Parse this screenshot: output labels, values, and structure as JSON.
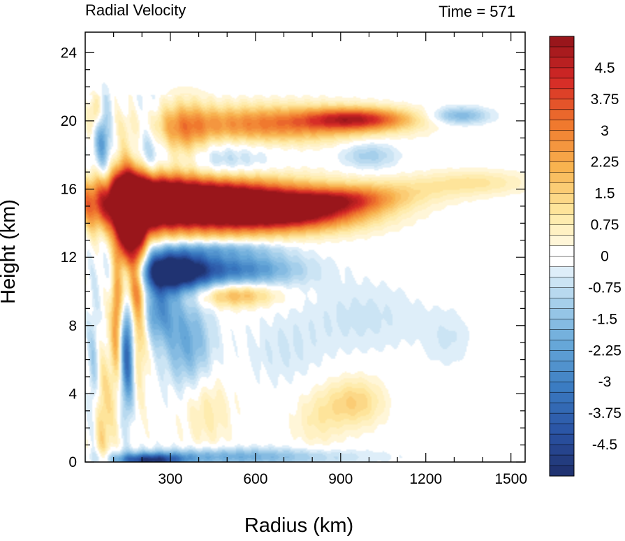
{
  "chart_data": {
    "type": "heatmap",
    "title_left": "Radial Velocity",
    "title_right": "Time = 571",
    "xlabel": "Radius (km)",
    "ylabel": "Height (km)",
    "xlim": [
      0,
      1550
    ],
    "ylim": [
      0,
      25.2
    ],
    "x_ticks": [
      300,
      600,
      900,
      1200,
      1500
    ],
    "y_ticks": [
      0,
      4,
      8,
      12,
      16,
      20,
      24
    ],
    "colorbar": {
      "min": -5.25,
      "max": 5.25,
      "step": 0.25,
      "labels": [
        "4.5",
        "3.75",
        "3",
        "2.25",
        "1.5",
        "0.75",
        "0",
        "-0.75",
        "-1.5",
        "-2.25",
        "-3",
        "-3.75",
        "-4.5"
      ],
      "label_values": [
        4.5,
        3.75,
        3,
        2.25,
        1.5,
        0.75,
        0,
        -0.75,
        -1.5,
        -2.25,
        -3,
        -3.75,
        -4.5
      ]
    },
    "features": [
      {
        "r": 370,
        "z": 15.2,
        "sr": 260,
        "sz": 1.1,
        "v": 8.0
      },
      {
        "r": 200,
        "z": 15.3,
        "sr": 80,
        "sz": 1.2,
        "v": 3.0
      },
      {
        "r": 720,
        "z": 14.7,
        "sr": 190,
        "sz": 0.75,
        "v": 4.5
      },
      {
        "r": 920,
        "z": 15.4,
        "sr": 120,
        "sz": 0.5,
        "v": 2.2
      },
      {
        "r": 1100,
        "z": 15.9,
        "sr": 160,
        "sz": 0.6,
        "v": 0.9
      },
      {
        "r": 1380,
        "z": 16.4,
        "sr": 130,
        "sz": 0.5,
        "v": 1.0
      },
      {
        "r": 175,
        "z": 12.0,
        "sr": 30,
        "sz": 4.0,
        "v": 5.5
      },
      {
        "r": 130,
        "z": 14.5,
        "sr": 22,
        "sz": 2.2,
        "v": 3.5
      },
      {
        "r": 300,
        "z": 11.2,
        "sr": 90,
        "sz": 0.8,
        "v": -6.0
      },
      {
        "r": 520,
        "z": 11.3,
        "sr": 160,
        "sz": 0.7,
        "v": -3.0
      },
      {
        "r": 470,
        "z": 12.5,
        "sr": 150,
        "sz": 0.35,
        "v": -1.4
      },
      {
        "r": 250,
        "z": 9.0,
        "sr": 50,
        "sz": 1.3,
        "v": -2.5
      },
      {
        "r": 360,
        "z": 7.0,
        "sr": 60,
        "sz": 1.8,
        "v": -2.0
      },
      {
        "r": 150,
        "z": 6.8,
        "sr": 18,
        "sz": 2.5,
        "v": -5.0
      },
      {
        "r": 110,
        "z": 8.5,
        "sr": 14,
        "sz": 2.5,
        "v": 2.5
      },
      {
        "r": 530,
        "z": 9.8,
        "sr": 100,
        "sz": 0.5,
        "v": 2.2
      },
      {
        "r": 430,
        "z": 17.4,
        "sr": 170,
        "sz": 0.9,
        "v": -1.5
      },
      {
        "r": 640,
        "z": 19.8,
        "sr": 260,
        "sz": 0.75,
        "v": 3.0
      },
      {
        "r": 960,
        "z": 20.1,
        "sr": 130,
        "sz": 0.45,
        "v": 3.6
      },
      {
        "r": 350,
        "z": 19.0,
        "sr": 60,
        "sz": 1.5,
        "v": 1.8
      },
      {
        "r": 1000,
        "z": 18.0,
        "sr": 70,
        "sz": 0.6,
        "v": -1.2
      },
      {
        "r": 1320,
        "z": 20.3,
        "sr": 70,
        "sz": 0.35,
        "v": -1.8
      },
      {
        "r": 200,
        "z": 18.5,
        "sr": 40,
        "sz": 2.0,
        "v": -1.5
      },
      {
        "r": 60,
        "z": 19.2,
        "sr": 20,
        "sz": 1.5,
        "v": -2.5
      },
      {
        "r": 40,
        "z": 20.5,
        "sr": 18,
        "sz": 0.8,
        "v": 1.8
      },
      {
        "r": 60,
        "z": 2.5,
        "sr": 30,
        "sz": 3.0,
        "v": 1.5
      },
      {
        "r": 30,
        "z": 5.0,
        "sr": 15,
        "sz": 3.0,
        "v": -1.5
      },
      {
        "r": 480,
        "z": 0.3,
        "sr": 300,
        "sz": 0.35,
        "v": -2.0
      },
      {
        "r": 230,
        "z": 0.1,
        "sr": 80,
        "sz": 0.25,
        "v": -4.0
      },
      {
        "r": 950,
        "z": 3.5,
        "sr": 70,
        "sz": 1.0,
        "v": 1.5
      },
      {
        "r": 820,
        "z": 2.5,
        "sr": 60,
        "sz": 1.2,
        "v": 0.8
      },
      {
        "r": 980,
        "z": 8.5,
        "sr": 150,
        "sz": 1.5,
        "v": -0.6
      },
      {
        "r": 700,
        "z": 6.5,
        "sr": 100,
        "sz": 1.5,
        "v": -0.5
      },
      {
        "r": 430,
        "z": 3.0,
        "sr": 60,
        "sz": 1.5,
        "v": 0.9
      },
      {
        "r": 1280,
        "z": 7.2,
        "sr": 60,
        "sz": 1.2,
        "v": -0.5
      }
    ]
  }
}
